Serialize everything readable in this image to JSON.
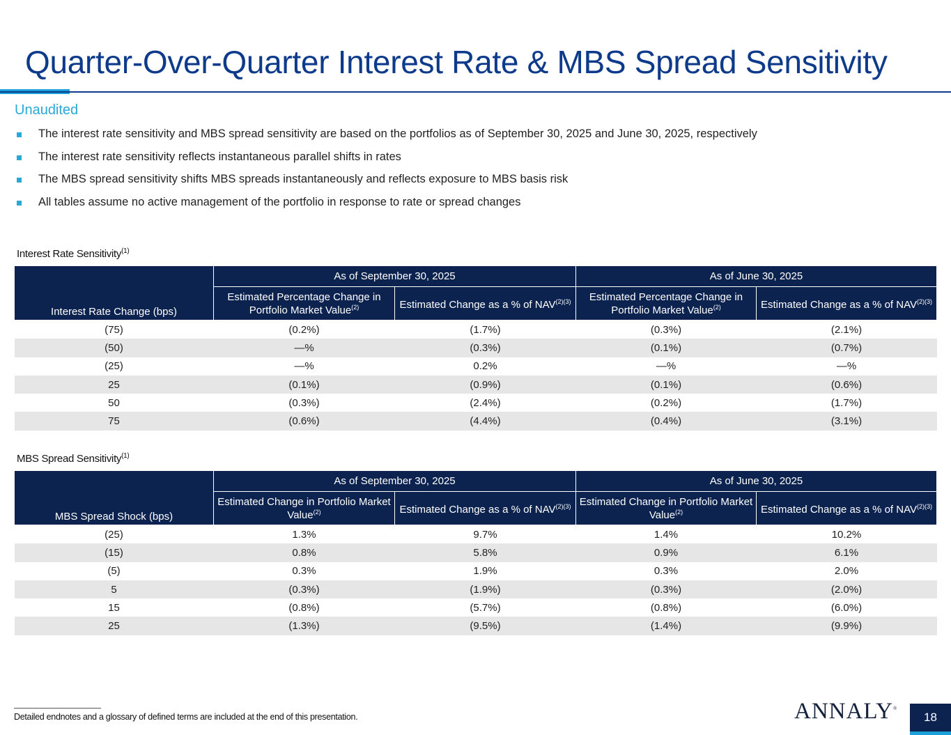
{
  "title": "Quarter-Over-Quarter Interest Rate & MBS Spread Sensitivity",
  "subtitle": "Unaudited",
  "bullets": [
    "The interest rate sensitivity and MBS spread sensitivity are based on the portfolios as of September 30, 2025 and June 30, 2025, respectively",
    "The interest rate sensitivity reflects instantaneous parallel shifts in rates",
    "The MBS spread sensitivity shifts MBS spreads instantaneously and reflects exposure to MBS basis risk",
    "All tables assume no active management of the portfolio in response to rate or spread changes"
  ],
  "tables": [
    {
      "label": "Interest Rate Sensitivity",
      "label_sup": "(1)",
      "row_header": "Interest Rate Change (bps)",
      "periods": [
        "As of September 30, 2025",
        "As of June 30, 2025"
      ],
      "cols": [
        {
          "text": "Estimated Percentage Change in Portfolio Market Value",
          "sup": "(2)"
        },
        {
          "text": "Estimated Change as a % of NAV",
          "sup": "(2)(3)"
        },
        {
          "text": "Estimated Percentage Change in Portfolio Market Value",
          "sup": "(2)"
        },
        {
          "text": "Estimated Change as a % of NAV",
          "sup": "(2)(3)"
        }
      ],
      "rows": [
        [
          "(75)",
          "(0.2%)",
          "(1.7%)",
          "(0.3%)",
          "(2.1%)"
        ],
        [
          "(50)",
          "—%",
          "(0.3%)",
          "(0.1%)",
          "(0.7%)"
        ],
        [
          "(25)",
          "—%",
          "0.2%",
          "—%",
          "—%"
        ],
        [
          "25",
          "(0.1%)",
          "(0.9%)",
          "(0.1%)",
          "(0.6%)"
        ],
        [
          "50",
          "(0.3%)",
          "(2.4%)",
          "(0.2%)",
          "(1.7%)"
        ],
        [
          "75",
          "(0.6%)",
          "(4.4%)",
          "(0.4%)",
          "(3.1%)"
        ]
      ]
    },
    {
      "label": "MBS Spread Sensitivity",
      "label_sup": "(1)",
      "row_header": "MBS Spread Shock (bps)",
      "periods": [
        "As of September 30, 2025",
        "As of June 30, 2025"
      ],
      "cols": [
        {
          "text": "Estimated Change in Portfolio Market Value",
          "sup": "(2)"
        },
        {
          "text": "Estimated Change as a % of NAV",
          "sup": "(2)(3)"
        },
        {
          "text": "Estimated Change in Portfolio Market Value",
          "sup": "(2)"
        },
        {
          "text": "Estimated Change as a % of NAV",
          "sup": "(2)(3)"
        }
      ],
      "rows": [
        [
          "(25)",
          "1.3%",
          "9.7%",
          "1.4%",
          "10.2%"
        ],
        [
          "(15)",
          "0.8%",
          "5.8%",
          "0.9%",
          "6.1%"
        ],
        [
          "(5)",
          "0.3%",
          "1.9%",
          "0.3%",
          "2.0%"
        ],
        [
          "5",
          "(0.3%)",
          "(1.9%)",
          "(0.3%)",
          "(2.0%)"
        ],
        [
          "15",
          "(0.8%)",
          "(5.7%)",
          "(0.8%)",
          "(6.0%)"
        ],
        [
          "25",
          "(1.3%)",
          "(9.5%)",
          "(1.4%)",
          "(9.9%)"
        ]
      ]
    }
  ],
  "footnote": "Detailed endnotes and a glossary of defined terms are included at the end of this presentation.",
  "logo": "ANNALY",
  "page_number": "18"
}
